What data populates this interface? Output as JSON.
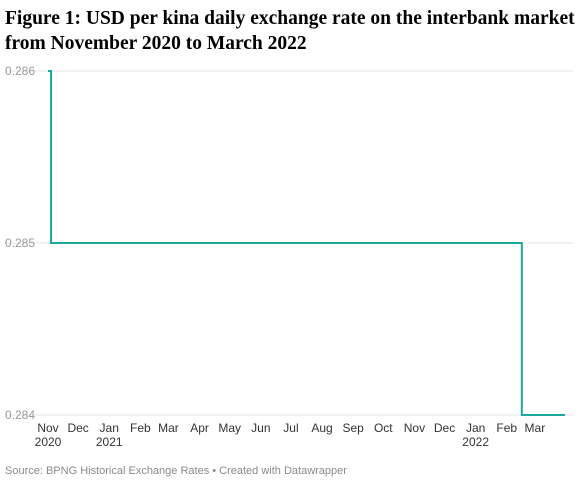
{
  "title": "Figure 1: USD per kina daily exchange rate on the interbank market from November 2020 to March 2022",
  "source": "Source: BPNG Historical Exchange Rates • Created with Datawrapper",
  "colors": {
    "line": "#1aaa9b",
    "grid": "#e6e6e6"
  },
  "chart_data": {
    "type": "line",
    "title": "Figure 1: USD per kina daily exchange rate on the interbank market from November 2020 to March 2022",
    "xlabel": "",
    "ylabel": "",
    "ylim": [
      0.284,
      0.286
    ],
    "yticks": [
      "0.286",
      "0.285",
      "0.284"
    ],
    "xlim": [
      "2020-11-01",
      "2022-03-31"
    ],
    "grid": true,
    "legend": "none",
    "xticks": [
      {
        "date": "2020-11-01",
        "label": "Nov",
        "year": "2020"
      },
      {
        "date": "2020-12-01",
        "label": "Dec",
        "year": ""
      },
      {
        "date": "2021-01-01",
        "label": "Jan",
        "year": "2021"
      },
      {
        "date": "2021-02-01",
        "label": "Feb",
        "year": ""
      },
      {
        "date": "2021-03-01",
        "label": "Mar",
        "year": ""
      },
      {
        "date": "2021-04-01",
        "label": "Apr",
        "year": ""
      },
      {
        "date": "2021-05-01",
        "label": "May",
        "year": ""
      },
      {
        "date": "2021-06-01",
        "label": "Jun",
        "year": ""
      },
      {
        "date": "2021-07-01",
        "label": "Jul",
        "year": ""
      },
      {
        "date": "2021-08-01",
        "label": "Aug",
        "year": ""
      },
      {
        "date": "2021-09-01",
        "label": "Sep",
        "year": ""
      },
      {
        "date": "2021-10-01",
        "label": "Oct",
        "year": ""
      },
      {
        "date": "2021-11-01",
        "label": "Nov",
        "year": ""
      },
      {
        "date": "2021-12-01",
        "label": "Dec",
        "year": ""
      },
      {
        "date": "2022-01-01",
        "label": "Jan",
        "year": "2022"
      },
      {
        "date": "2022-02-01",
        "label": "Feb",
        "year": ""
      },
      {
        "date": "2022-03-01",
        "label": "Mar",
        "year": ""
      }
    ],
    "series": [
      {
        "points": [
          {
            "x": "2020-11-01",
            "y": 0.286
          },
          {
            "x": "2020-11-04",
            "y": 0.286
          },
          {
            "x": "2020-11-04",
            "y": 0.285
          },
          {
            "x": "2022-02-16",
            "y": 0.285
          },
          {
            "x": "2022-02-16",
            "y": 0.284
          },
          {
            "x": "2022-03-31",
            "y": 0.284
          }
        ]
      }
    ]
  }
}
